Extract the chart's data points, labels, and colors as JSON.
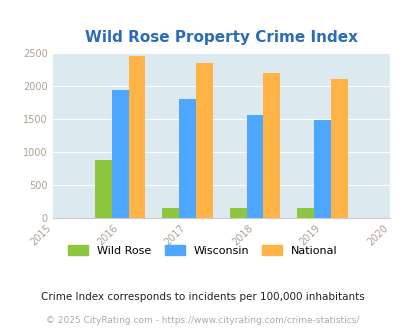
{
  "title": "Wild Rose Property Crime Index",
  "years": [
    2015,
    2016,
    2017,
    2018,
    2019,
    2020
  ],
  "data_years": [
    2016,
    2017,
    2018,
    2019
  ],
  "wild_rose": [
    875,
    150,
    150,
    155
  ],
  "wisconsin": [
    1940,
    1800,
    1550,
    1475
  ],
  "national": [
    2450,
    2350,
    2200,
    2100
  ],
  "color_wild_rose": "#8dc63f",
  "color_wisconsin": "#4da6ff",
  "color_national": "#ffb347",
  "background_color": "#dce9f0",
  "title_color": "#2b6cb8",
  "tick_color": "#b0a090",
  "ylim": [
    0,
    2500
  ],
  "yticks": [
    0,
    500,
    1000,
    1500,
    2000,
    2500
  ],
  "legend_labels": [
    "Wild Rose",
    "Wisconsin",
    "National"
  ],
  "footnote1": "Crime Index corresponds to incidents per 100,000 inhabitants",
  "footnote2": "© 2025 CityRating.com - https://www.cityrating.com/crime-statistics/",
  "bar_width": 0.25,
  "fig_width": 4.06,
  "fig_height": 3.3
}
